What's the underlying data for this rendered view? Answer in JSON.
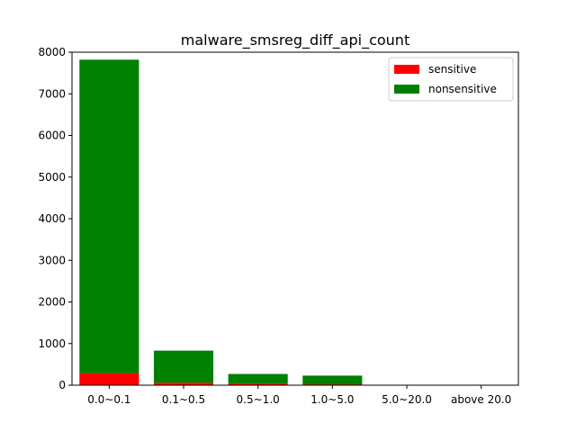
{
  "chart_data": {
    "type": "bar",
    "stacked": true,
    "title": "malware_smsreg_diff_api_count",
    "xlabel": "",
    "ylabel": "",
    "categories": [
      "0.0~0.1",
      "0.1~0.5",
      "0.5~1.0",
      "1.0~5.0",
      "5.0~20.0",
      "above 20.0"
    ],
    "series": [
      {
        "name": "sensitive",
        "color": "#ff0000",
        "values": [
          290,
          60,
          40,
          20,
          0,
          0
        ]
      },
      {
        "name": "nonsensitive",
        "color": "#008000",
        "values": [
          7530,
          770,
          230,
          210,
          0,
          0
        ]
      }
    ],
    "ylim": [
      0,
      8000
    ],
    "yticks": [
      0,
      1000,
      2000,
      3000,
      4000,
      5000,
      6000,
      7000,
      8000
    ],
    "grid": false,
    "legend_position": "top-right"
  }
}
